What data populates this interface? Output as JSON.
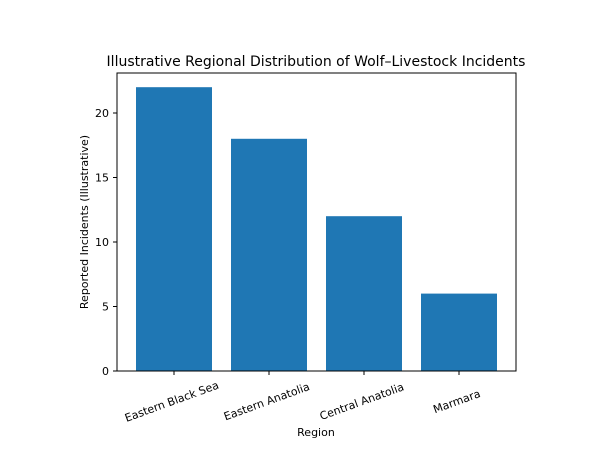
{
  "chart_data": {
    "type": "bar",
    "title": "Illustrative Regional Distribution of Wolf–Livestock Incidents",
    "xlabel": "Region",
    "ylabel": "Reported Incidents (Illustrative)",
    "categories": [
      "Eastern Black Sea",
      "Eastern Anatolia",
      "Central Anatolia",
      "Marmara"
    ],
    "values": [
      22,
      18,
      12,
      6
    ],
    "ylim": [
      0,
      23.1
    ],
    "yticks": [
      0,
      5,
      10,
      15,
      20
    ],
    "grid": false,
    "bar_color": "#1f77b4",
    "xtick_rotation_deg": -20
  }
}
